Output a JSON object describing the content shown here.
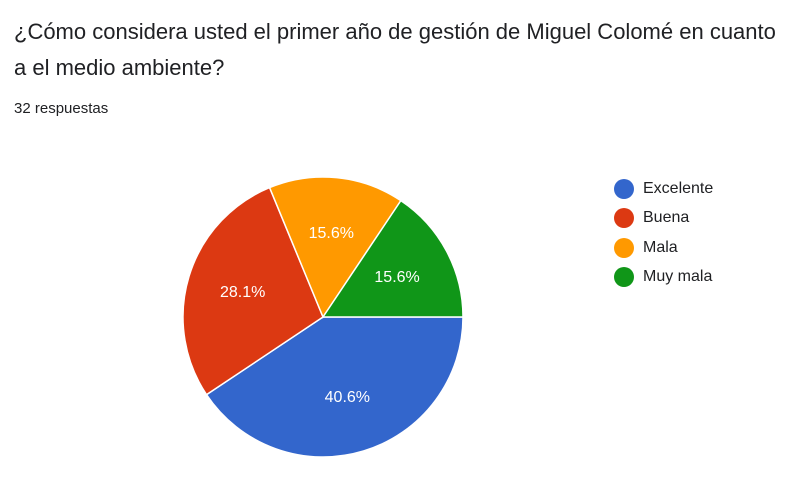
{
  "question": "¿Cómo considera usted el primer año de gestión de Miguel Colomé en cuanto a el medio ambiente?",
  "responses": "32 respuestas",
  "chart_data": {
    "type": "pie",
    "categories": [
      "Excelente",
      "Buena",
      "Mala",
      "Muy mala"
    ],
    "values": [
      40.6,
      28.1,
      15.6,
      15.6
    ],
    "labels": [
      "40.6%",
      "28.1%",
      "15.6%",
      "15.6%"
    ],
    "colors": [
      "#3366cc",
      "#dc3912",
      "#ff9900",
      "#109618"
    ],
    "legend_position": "right"
  },
  "legend": [
    {
      "label": "Excelente",
      "color": "#3366cc"
    },
    {
      "label": "Buena",
      "color": "#dc3912"
    },
    {
      "label": "Mala",
      "color": "#ff9900"
    },
    {
      "label": "Muy mala",
      "color": "#109618"
    }
  ]
}
